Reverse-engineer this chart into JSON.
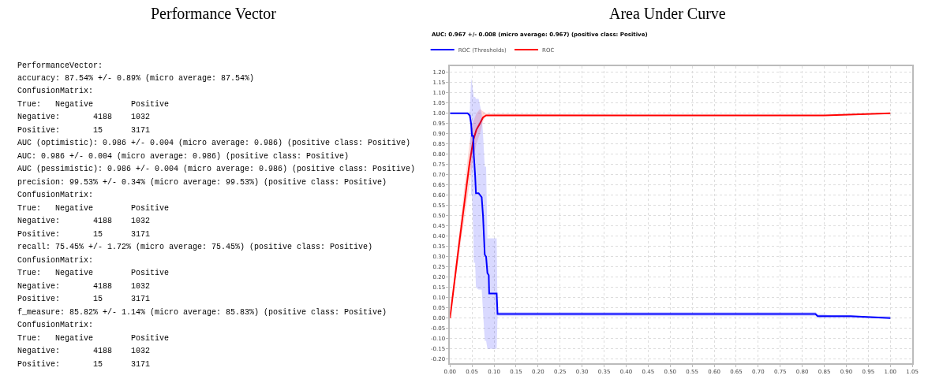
{
  "chart_data": [
    {
      "type": "other",
      "title": "Performance Vector",
      "annotations": [
        "PerformanceVector:",
        "accuracy: 87.54% +/- 0.89% (micro average: 87.54%)",
        "ConfusionMatrix:",
        "True:   Negative        Positive",
        "Negative:       4188    1032",
        "Positive:       15      3171",
        "AUC (optimistic): 0.986 +/- 0.004 (micro average: 0.986) (positive class: Positive)",
        "AUC: 0.986 +/- 0.004 (micro average: 0.986) (positive class: Positive)",
        "AUC (pessimistic): 0.986 +/- 0.004 (micro average: 0.986) (positive class: Positive)",
        "precision: 99.53% +/- 0.34% (micro average: 99.53%) (positive class: Positive)",
        "ConfusionMatrix:",
        "True:   Negative        Positive",
        "Negative:       4188    1032",
        "Positive:       15      3171",
        "recall: 75.45% +/- 1.72% (micro average: 75.45%) (positive class: Positive)",
        "ConfusionMatrix:",
        "True:   Negative        Positive",
        "Negative:       4188    1032",
        "Positive:       15      3171",
        "f_measure: 85.82% +/- 1.14% (micro average: 85.83%) (positive class: Positive)",
        "ConfusionMatrix:",
        "True:   Negative        Positive",
        "Negative:       4188    1032",
        "Positive:       15      3171"
      ]
    },
    {
      "type": "line",
      "title": "Area Under Curve",
      "subtitle": "AUC: 0.967 +/- 0.008 (micro average: 0.967) (positive class: Positive)",
      "series": [
        {
          "name": "ROC",
          "color": "#ff0000",
          "x": [
            0,
            0.02,
            0.044,
            0.053,
            0.06,
            0.068,
            0.075,
            0.082,
            0.5,
            0.85,
            1.0
          ],
          "values": [
            0,
            0.35,
            0.75,
            0.87,
            0.92,
            0.95,
            0.98,
            0.99,
            0.99,
            0.99,
            1.0
          ],
          "lower": [
            0,
            0.3,
            0.65,
            0.78,
            0.85,
            0.9,
            0.96,
            0.99,
            0.99,
            0.99,
            1.0
          ],
          "upper": [
            0,
            0.4,
            0.85,
            0.96,
            1.0,
            1.02,
            1.01,
            1.0,
            0.99,
            0.99,
            1.0
          ]
        },
        {
          "name": "ROC (Thresholds)",
          "color": "#0000ff",
          "x": [
            0,
            0.04,
            0.045,
            0.048,
            0.05,
            0.053,
            0.054,
            0.057,
            0.059,
            0.065,
            0.072,
            0.075,
            0.079,
            0.082,
            0.085,
            0.088,
            0.089,
            0.1,
            0.106,
            0.108,
            0.15,
            0.16,
            0.83,
            0.835,
            0.85,
            0.87,
            0.91,
            1.0
          ],
          "values": [
            1.0,
            1.0,
            0.99,
            0.95,
            0.89,
            0.89,
            0.8,
            0.7,
            0.61,
            0.61,
            0.59,
            0.5,
            0.31,
            0.3,
            0.22,
            0.21,
            0.12,
            0.12,
            0.12,
            0.02,
            0.02,
            0.02,
            0.02,
            0.01,
            0.01,
            0.01,
            0.01,
            0.0
          ],
          "lower": [
            1.0,
            1.0,
            0.97,
            0.6,
            0.6,
            0.4,
            0.27,
            0.27,
            0.15,
            0.14,
            0.14,
            0.03,
            -0.11,
            -0.11,
            -0.15,
            -0.15,
            -0.15,
            -0.15,
            -0.15,
            0.01,
            0.01,
            0.01,
            0.01,
            0.0,
            0.0,
            0.0,
            0.0,
            0.0
          ],
          "upper": [
            1.0,
            1.0,
            1.01,
            1.17,
            1.15,
            1.1,
            1.08,
            1.08,
            1.07,
            1.07,
            1.0,
            0.9,
            0.74,
            0.74,
            0.39,
            0.39,
            0.39,
            0.39,
            0.39,
            0.03,
            0.03,
            0.03,
            0.03,
            0.02,
            0.02,
            0.01,
            0.01,
            0.01
          ]
        }
      ],
      "xlim": [
        0,
        1.05
      ],
      "ylim": [
        -0.22,
        1.23
      ],
      "xticks": [
        {
          "value": 0,
          "label": "0.00"
        },
        {
          "value": 0.05,
          "label": "0.05"
        },
        {
          "value": 0.1,
          "label": "0.10"
        },
        {
          "value": 0.15,
          "label": "0.15"
        },
        {
          "value": 0.2,
          "label": "0.20"
        },
        {
          "value": 0.25,
          "label": "0.25"
        },
        {
          "value": 0.3,
          "label": "0.30"
        },
        {
          "value": 0.35,
          "label": "0.35"
        },
        {
          "value": 0.4,
          "label": "0.40"
        },
        {
          "value": 0.45,
          "label": "0.45"
        },
        {
          "value": 0.5,
          "label": "0.50"
        },
        {
          "value": 0.55,
          "label": "0.55"
        },
        {
          "value": 0.6,
          "label": "0.60"
        },
        {
          "value": 0.65,
          "label": "0.65"
        },
        {
          "value": 0.7,
          "label": "0.70"
        },
        {
          "value": 0.75,
          "label": "0.75"
        },
        {
          "value": 0.8,
          "label": "0.80"
        },
        {
          "value": 0.85,
          "label": "0.85"
        },
        {
          "value": 0.9,
          "label": "0.90"
        },
        {
          "value": 0.95,
          "label": "0.95"
        },
        {
          "value": 1.0,
          "label": "1.00"
        },
        {
          "value": 1.05,
          "label": "1.05"
        }
      ],
      "yticks": [
        {
          "value": -0.2,
          "label": "-0.20"
        },
        {
          "value": -0.15,
          "label": "-0.15"
        },
        {
          "value": -0.1,
          "label": "-0.10"
        },
        {
          "value": -0.05,
          "label": "-0.05"
        },
        {
          "value": 0,
          "label": "0.00"
        },
        {
          "value": 0.05,
          "label": "0.05"
        },
        {
          "value": 0.1,
          "label": "0.10"
        },
        {
          "value": 0.15,
          "label": "0.15"
        },
        {
          "value": 0.2,
          "label": "0.20"
        },
        {
          "value": 0.25,
          "label": "0.25"
        },
        {
          "value": 0.3,
          "label": "0.30"
        },
        {
          "value": 0.35,
          "label": "0.35"
        },
        {
          "value": 0.4,
          "label": "0.40"
        },
        {
          "value": 0.45,
          "label": "0.45"
        },
        {
          "value": 0.5,
          "label": "0.50"
        },
        {
          "value": 0.55,
          "label": "0.55"
        },
        {
          "value": 0.6,
          "label": "0.60"
        },
        {
          "value": 0.65,
          "label": "0.65"
        },
        {
          "value": 0.7,
          "label": "0.70"
        },
        {
          "value": 0.75,
          "label": "0.75"
        },
        {
          "value": 0.8,
          "label": "0.80"
        },
        {
          "value": 0.85,
          "label": "0.85"
        },
        {
          "value": 0.9,
          "label": "0.90"
        },
        {
          "value": 0.95,
          "label": "0.95"
        },
        {
          "value": 1.0,
          "label": "1.00"
        },
        {
          "value": 1.05,
          "label": "1.05"
        },
        {
          "value": 1.1,
          "label": "1.10"
        },
        {
          "value": 1.15,
          "label": "1.15"
        },
        {
          "value": 1.2,
          "label": "1.20"
        }
      ],
      "grid": true,
      "legend": "top left",
      "marker": "none",
      "line_style": "solid"
    }
  ]
}
